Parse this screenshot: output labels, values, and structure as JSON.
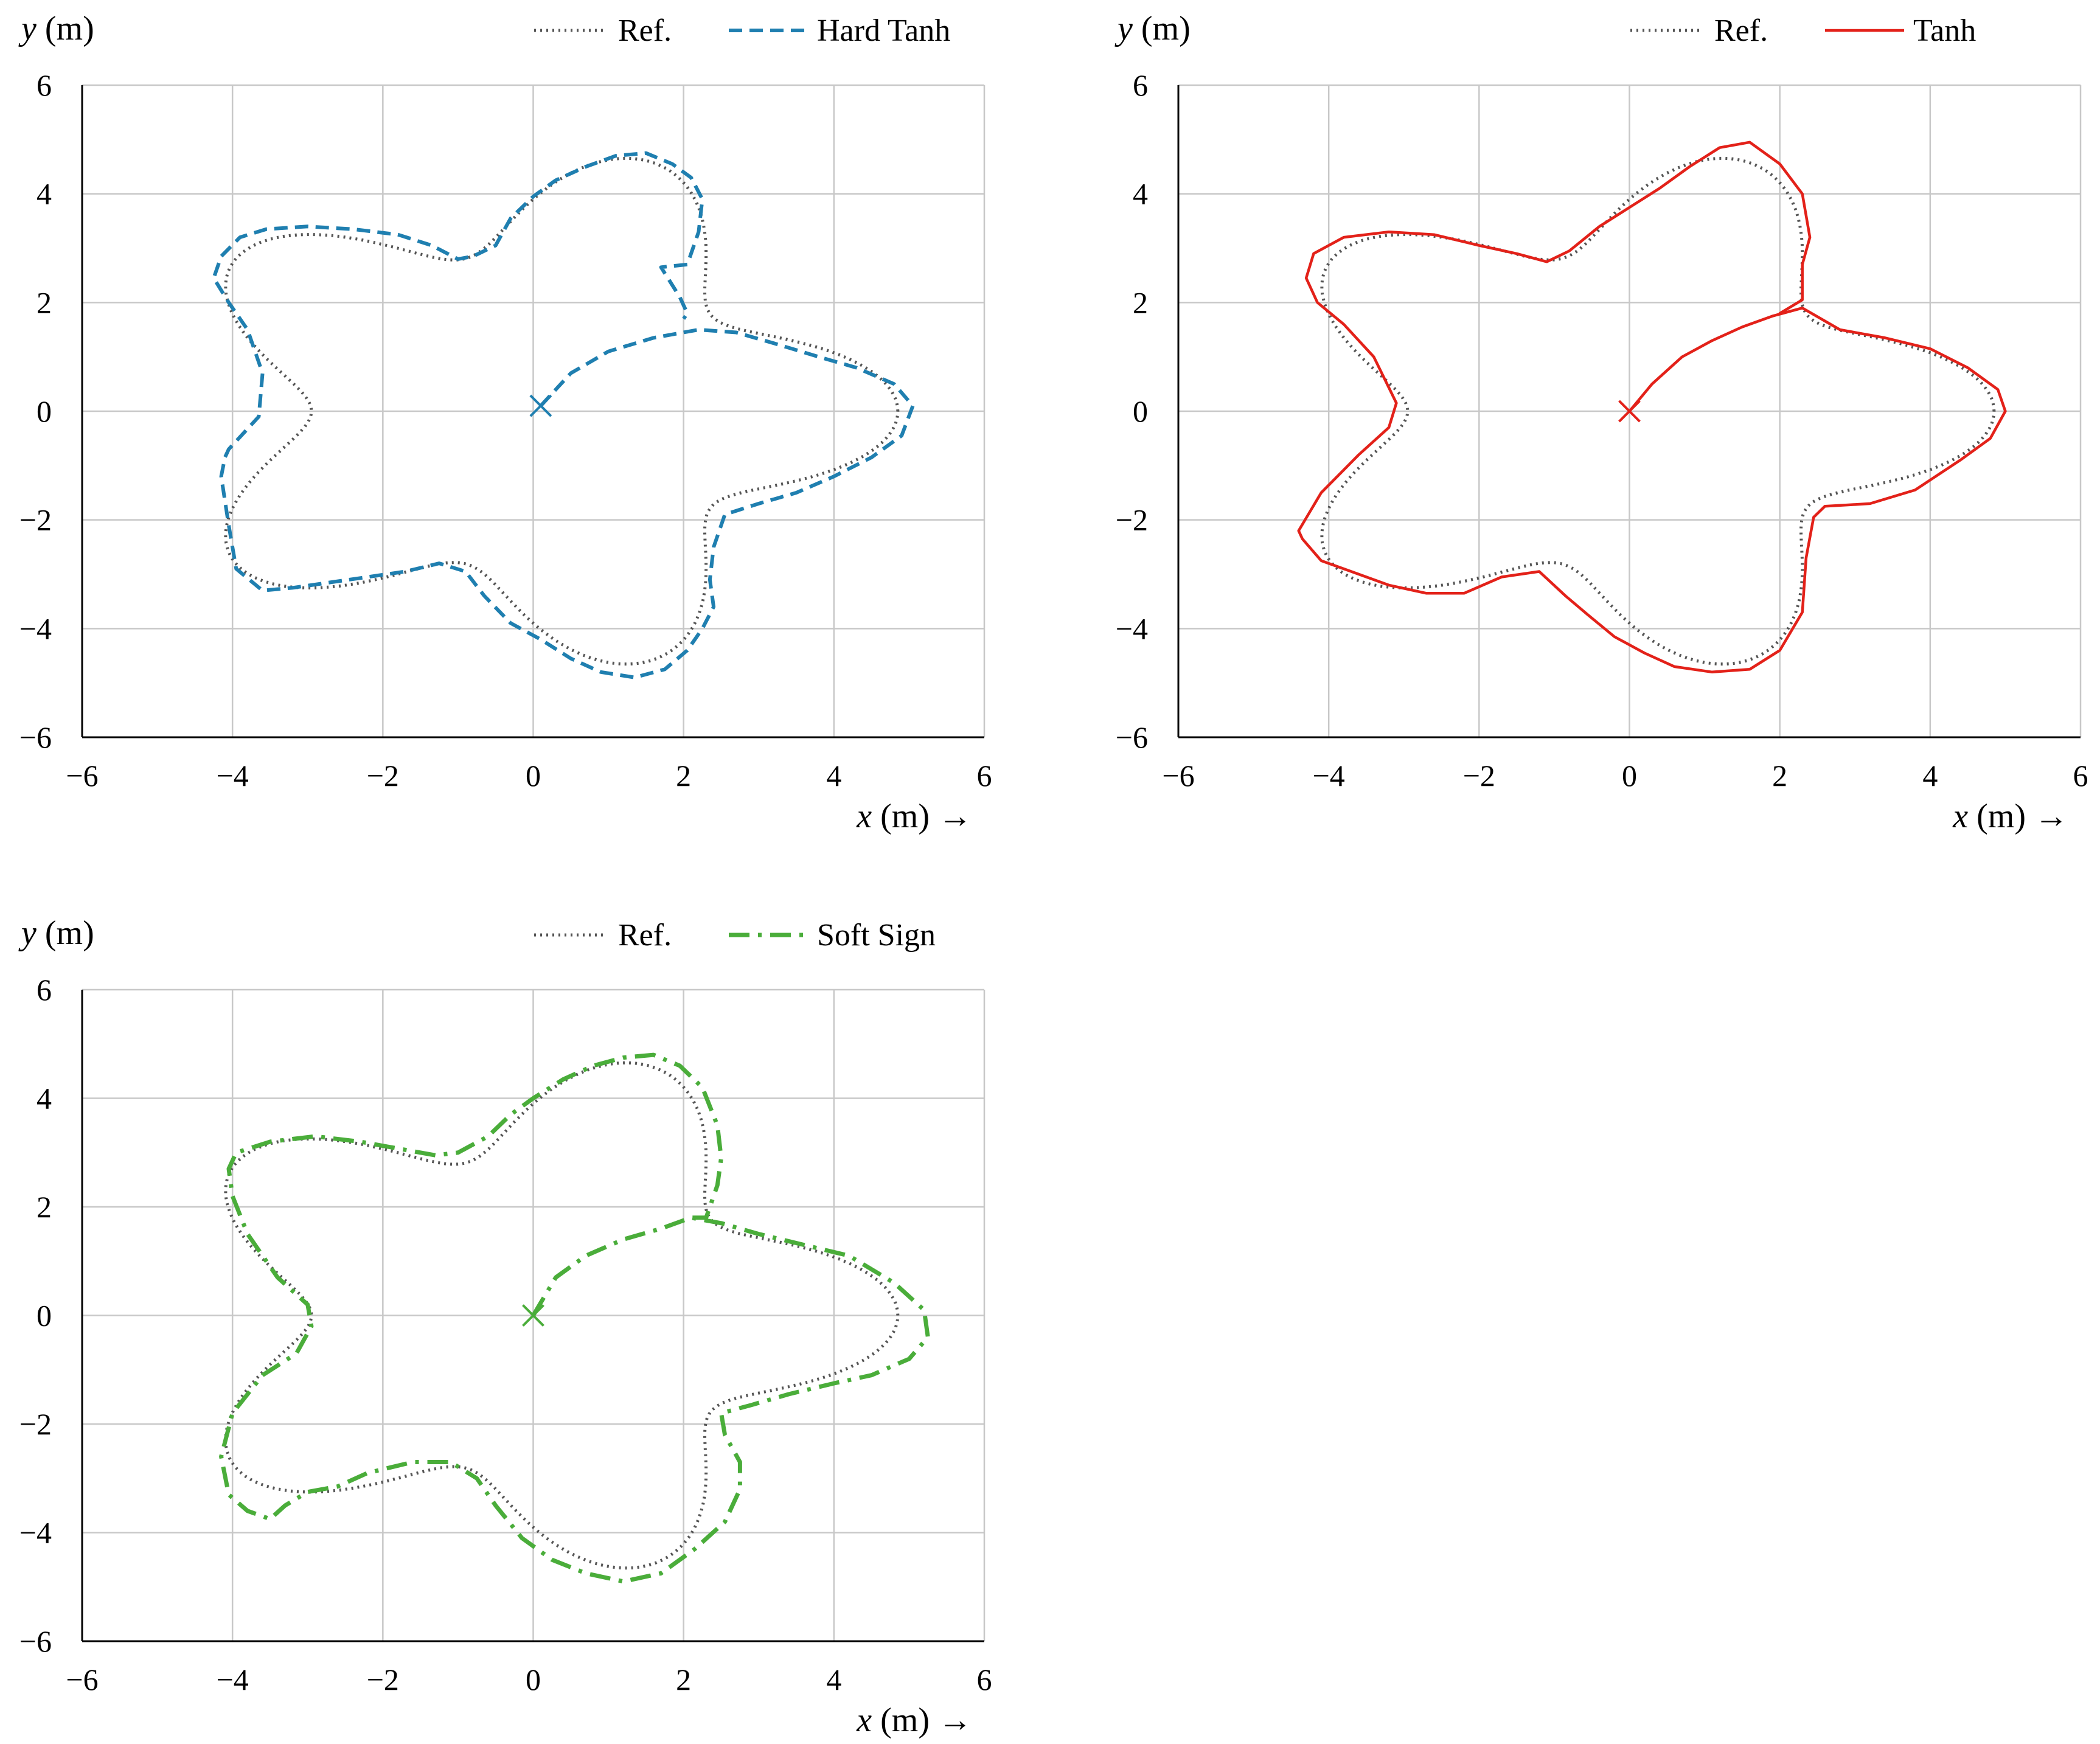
{
  "chart_data": [
    {
      "type": "line",
      "ylabel": "y (m)",
      "xlabel": "x (m) →",
      "xlim": [
        -6,
        6
      ],
      "ylim": [
        -6,
        6
      ],
      "xticks": [
        "−6",
        "−4",
        "−2",
        "0",
        "2",
        "4",
        "6"
      ],
      "yticks": [
        "6",
        "4",
        "2",
        "0",
        "−2",
        "−4",
        "−6"
      ],
      "grid": true,
      "legend_position": "top-right",
      "start_marker": {
        "x": 0.1,
        "y": 0.1,
        "color": "#1f7fb0"
      },
      "series": [
        {
          "name": "Ref.",
          "style": "dotted",
          "color": "#555555",
          "shape": "reference-star"
        },
        {
          "name": "Hard Tanh",
          "style": "dashed",
          "color": "#1f7fb0",
          "x": [
            0.1,
            0.5,
            1.0,
            1.6,
            2.2,
            2.7,
            3.2,
            3.8,
            4.3,
            4.8,
            5.05,
            4.9,
            4.5,
            4.0,
            3.5,
            3.0,
            2.55,
            2.4,
            2.35,
            2.4,
            2.25,
            2.05,
            1.75,
            1.35,
            0.9,
            0.5,
            0.1,
            -0.3,
            -0.65,
            -0.9,
            -1.25,
            -1.7,
            -2.2,
            -2.7,
            -3.2,
            -3.6,
            -3.95,
            -4.05,
            -4.15,
            -4.1,
            -4.05,
            -3.65,
            -3.6,
            -3.8,
            -4.05,
            -4.25,
            -4.15,
            -3.9,
            -3.55,
            -3.0,
            -2.4,
            -1.8,
            -1.35,
            -1.0,
            -0.8,
            -0.5,
            -0.3,
            0.0,
            0.3,
            0.7,
            1.1,
            1.5,
            1.85,
            2.1,
            2.25,
            2.2,
            2.05,
            1.7,
            1.95,
            2.05,
            2.0
          ],
          "y": [
            0.1,
            0.7,
            1.1,
            1.35,
            1.5,
            1.45,
            1.25,
            1.0,
            0.8,
            0.5,
            0.1,
            -0.45,
            -0.85,
            -1.2,
            -1.5,
            -1.7,
            -1.9,
            -2.5,
            -3.1,
            -3.6,
            -4.0,
            -4.4,
            -4.75,
            -4.9,
            -4.8,
            -4.55,
            -4.2,
            -3.9,
            -3.4,
            -2.95,
            -2.8,
            -2.95,
            -3.05,
            -3.15,
            -3.25,
            -3.3,
            -2.9,
            -2.1,
            -1.2,
            -0.85,
            -0.7,
            -0.1,
            0.7,
            1.5,
            2.0,
            2.45,
            2.85,
            3.2,
            3.35,
            3.4,
            3.35,
            3.25,
            3.05,
            2.8,
            2.85,
            3.05,
            3.55,
            3.95,
            4.25,
            4.5,
            4.7,
            4.75,
            4.55,
            4.3,
            3.9,
            3.3,
            2.7,
            2.65,
            2.1,
            1.8,
            1.7
          ]
        }
      ]
    },
    {
      "type": "line",
      "ylabel": "y (m)",
      "xlabel": "x (m) →",
      "xlim": [
        -6,
        6
      ],
      "ylim": [
        -6,
        6
      ],
      "xticks": [
        "−6",
        "−4",
        "−2",
        "0",
        "2",
        "4",
        "6"
      ],
      "yticks": [
        "6",
        "4",
        "2",
        "0",
        "−2",
        "−4",
        "−6"
      ],
      "grid": true,
      "legend_position": "top-right",
      "start_marker": {
        "x": 0.0,
        "y": 0.0,
        "color": "#e32119"
      },
      "series": [
        {
          "name": "Ref.",
          "style": "dotted",
          "color": "#555555",
          "shape": "reference-star"
        },
        {
          "name": "Tanh",
          "style": "solid",
          "color": "#e32119",
          "x": [
            0.0,
            0.3,
            0.7,
            1.1,
            1.5,
            1.9,
            2.3,
            2.8,
            3.4,
            4.0,
            4.5,
            4.9,
            5.0,
            4.8,
            4.4,
            3.8,
            3.2,
            2.6,
            2.45,
            2.35,
            2.3,
            2.0,
            1.6,
            1.1,
            0.6,
            0.2,
            -0.2,
            -0.55,
            -0.85,
            -1.2,
            -1.7,
            -2.2,
            -2.7,
            -3.2,
            -3.7,
            -4.1,
            -4.35,
            -4.4,
            -4.1,
            -3.6,
            -3.2,
            -3.1,
            -3.4,
            -3.8,
            -4.15,
            -4.3,
            -4.2,
            -3.8,
            -3.2,
            -2.6,
            -2.0,
            -1.5,
            -1.1,
            -0.8,
            -0.4,
            0.0,
            0.4,
            0.8,
            1.2,
            1.6,
            2.0,
            2.3,
            2.4,
            2.3,
            2.3,
            2.0
          ],
          "y": [
            0.0,
            0.5,
            1.0,
            1.3,
            1.55,
            1.75,
            1.9,
            1.5,
            1.35,
            1.15,
            0.8,
            0.4,
            0.0,
            -0.5,
            -0.9,
            -1.45,
            -1.7,
            -1.75,
            -1.95,
            -2.7,
            -3.7,
            -4.4,
            -4.75,
            -4.8,
            -4.7,
            -4.45,
            -4.15,
            -3.75,
            -3.4,
            -2.95,
            -3.05,
            -3.35,
            -3.35,
            -3.2,
            -2.95,
            -2.75,
            -2.35,
            -2.2,
            -1.5,
            -0.8,
            -0.3,
            0.15,
            1.0,
            1.6,
            2.0,
            2.45,
            2.9,
            3.2,
            3.3,
            3.25,
            3.05,
            2.9,
            2.75,
            2.95,
            3.4,
            3.75,
            4.1,
            4.5,
            4.85,
            4.95,
            4.55,
            4.0,
            3.2,
            2.7,
            2.05,
            1.8
          ]
        }
      ]
    },
    {
      "type": "line",
      "ylabel": "y (m)",
      "xlabel": "x (m) →",
      "xlim": [
        -6,
        6
      ],
      "ylim": [
        -6,
        6
      ],
      "xticks": [
        "−6",
        "−4",
        "−2",
        "0",
        "2",
        "4",
        "6"
      ],
      "yticks": [
        "6",
        "4",
        "2",
        "0",
        "−2",
        "−4",
        "−6"
      ],
      "grid": true,
      "legend_position": "top-right",
      "start_marker": {
        "x": 0.0,
        "y": 0.0,
        "color": "#4aad3a"
      },
      "series": [
        {
          "name": "Ref.",
          "style": "dotted",
          "color": "#555555",
          "shape": "reference-star"
        },
        {
          "name": "Soft Sign",
          "style": "dashdot",
          "color": "#4aad3a",
          "x": [
            0.0,
            0.3,
            0.7,
            1.2,
            1.7,
            2.1,
            2.5,
            3.0,
            3.6,
            4.2,
            4.8,
            5.2,
            5.25,
            5.0,
            4.5,
            4.0,
            3.4,
            2.9,
            2.5,
            2.55,
            2.75,
            2.75,
            2.55,
            2.15,
            1.7,
            1.2,
            0.7,
            0.25,
            -0.15,
            -0.5,
            -0.75,
            -1.1,
            -1.6,
            -2.2,
            -2.6,
            -3.0,
            -3.3,
            -3.5,
            -3.8,
            -4.05,
            -4.15,
            -4.0,
            -3.6,
            -3.15,
            -2.95,
            -3.0,
            -3.4,
            -3.8,
            -4.0,
            -4.05,
            -3.95,
            -3.5,
            -2.9,
            -2.3,
            -1.7,
            -1.3,
            -1.0,
            -0.6,
            -0.3,
            0.0,
            0.4,
            0.8,
            1.2,
            1.6,
            1.95,
            2.25,
            2.45,
            2.5,
            2.45,
            2.35,
            2.3,
            2.1
          ],
          "y": [
            0.0,
            0.7,
            1.1,
            1.4,
            1.6,
            1.8,
            1.7,
            1.5,
            1.3,
            1.1,
            0.6,
            0.1,
            -0.4,
            -0.8,
            -1.1,
            -1.25,
            -1.45,
            -1.65,
            -1.8,
            -2.2,
            -2.7,
            -3.2,
            -3.8,
            -4.3,
            -4.75,
            -4.9,
            -4.75,
            -4.5,
            -4.1,
            -3.5,
            -3.0,
            -2.7,
            -2.7,
            -2.9,
            -3.15,
            -3.25,
            -3.5,
            -3.75,
            -3.6,
            -3.3,
            -2.6,
            -1.8,
            -1.1,
            -0.7,
            -0.2,
            0.2,
            0.7,
            1.5,
            2.2,
            2.7,
            3.0,
            3.2,
            3.3,
            3.2,
            3.05,
            2.95,
            3.0,
            3.3,
            3.7,
            4.0,
            4.35,
            4.6,
            4.75,
            4.8,
            4.6,
            4.2,
            3.5,
            2.9,
            2.4,
            2.0,
            1.8,
            1.8
          ]
        }
      ]
    }
  ]
}
